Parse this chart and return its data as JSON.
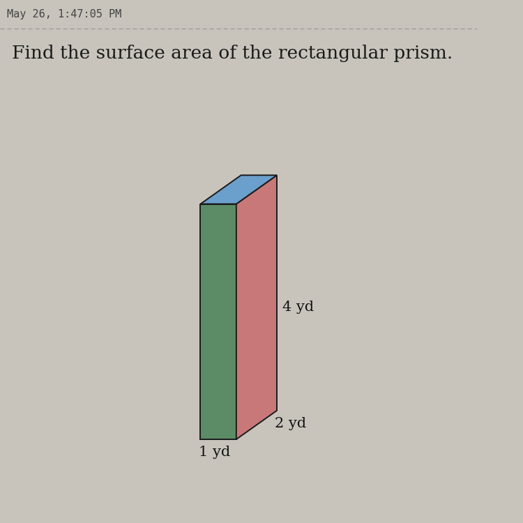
{
  "title": "Find the surface area of the rectangular prism.",
  "title_fontsize": 19,
  "background_color": "#c8c4bc",
  "header_text": "May 26, 1:47:05 PM",
  "header_color": "#444444",
  "header_fontsize": 11,
  "dashed_line_color": "#999999",
  "label_width": "1 yd",
  "label_depth": "2 yd",
  "label_height": "4 yd",
  "front_face_color": "#5c8c65",
  "right_face_color": "#c87878",
  "top_face_color": "#6b9fcc",
  "edge_color": "#1a1a1a",
  "label_fontsize": 15,
  "label_color": "#111111"
}
